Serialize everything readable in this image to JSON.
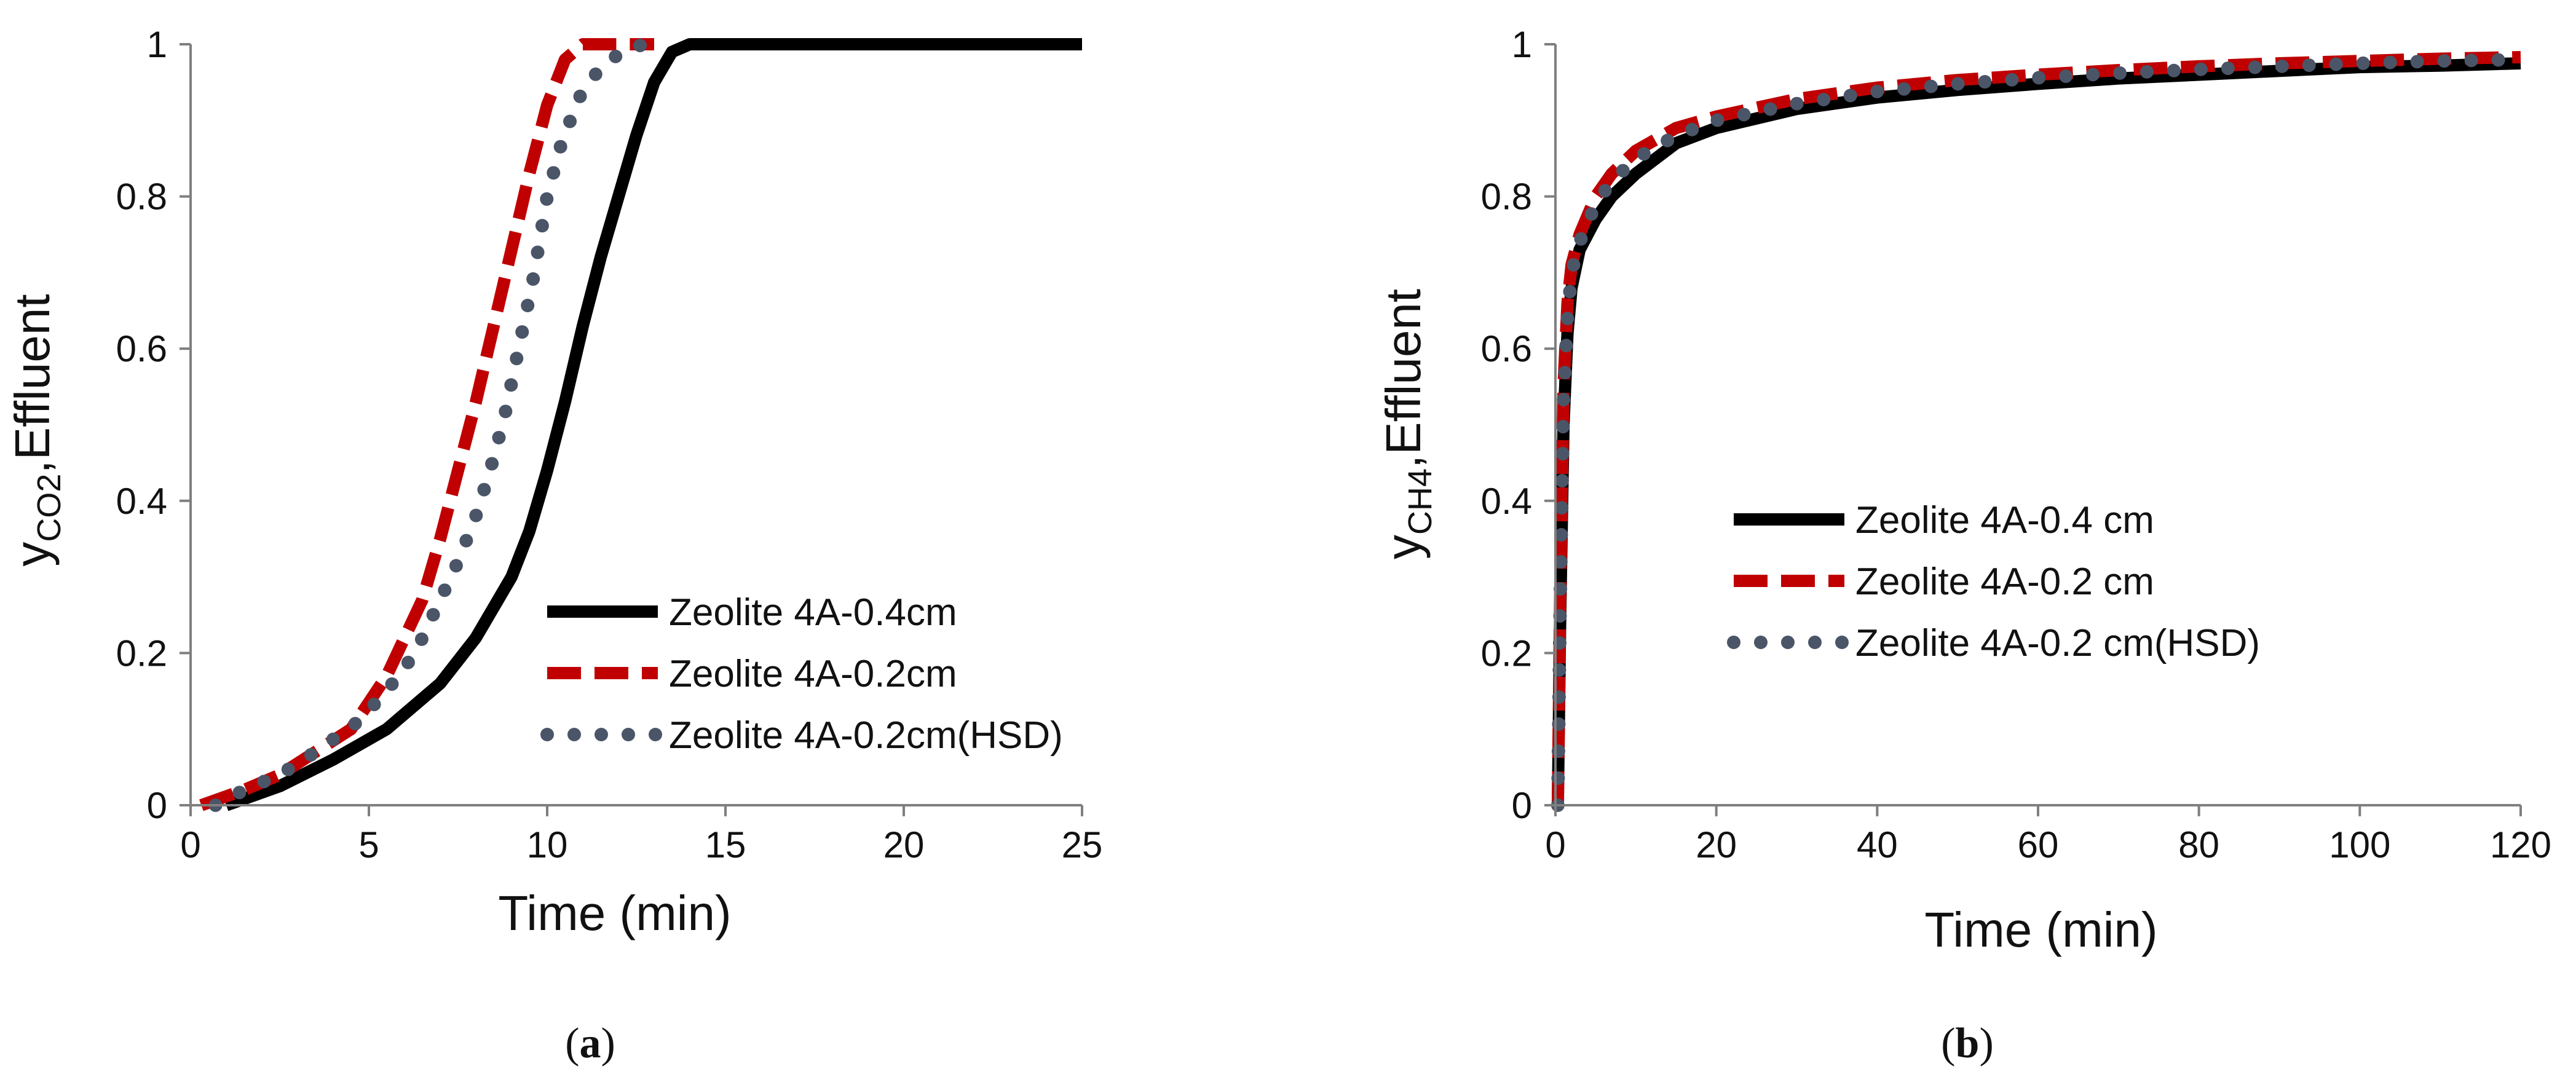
{
  "chart_data": [
    {
      "panel": "a",
      "type": "line",
      "caption": "a",
      "xlabel": "Time (min)",
      "ylabel_main": "y",
      "ylabel_sub": "CO2",
      "ylabel_suffix": ",Effluent",
      "xlim": [
        0,
        25
      ],
      "ylim": [
        0,
        1
      ],
      "xticks": [
        0,
        5,
        10,
        15,
        20,
        25
      ],
      "yticks": [
        0,
        0.2,
        0.4,
        0.6,
        0.8,
        1
      ],
      "ytick_labels": [
        "0",
        "0.2",
        "0.4",
        "0.6",
        "0.8",
        "1"
      ],
      "grid": false,
      "legend_position": "bottom-right",
      "series": [
        {
          "name": "Zeolite 4A-0.4cm",
          "style": "solid",
          "color": "#000000",
          "x": [
            1.0,
            2.5,
            4.0,
            5.5,
            7.0,
            8.0,
            9.0,
            9.5,
            10.0,
            10.5,
            11.0,
            11.5,
            12.0,
            12.5,
            13.0,
            13.5,
            14.0,
            15.0,
            20.0,
            25.0
          ],
          "y": [
            0.0,
            0.025,
            0.06,
            0.1,
            0.16,
            0.22,
            0.3,
            0.36,
            0.44,
            0.53,
            0.63,
            0.72,
            0.8,
            0.88,
            0.95,
            0.99,
            1.0,
            1.0,
            1.0,
            1.0
          ]
        },
        {
          "name": "Zeolite 4A-0.2cm",
          "style": "dashed",
          "color": "#c00000",
          "x": [
            0.3,
            1.5,
            2.5,
            3.5,
            4.5,
            5.5,
            6.5,
            7.0,
            7.5,
            8.0,
            8.5,
            9.0,
            9.5,
            10.0,
            10.5,
            11.0,
            12.0,
            13.0
          ],
          "y": [
            0.0,
            0.02,
            0.04,
            0.07,
            0.1,
            0.17,
            0.27,
            0.35,
            0.44,
            0.53,
            0.63,
            0.73,
            0.83,
            0.92,
            0.98,
            1.0,
            1.0,
            1.0
          ]
        },
        {
          "name": "Zeolite 4A-0.2cm(HSD)",
          "style": "dotted",
          "color": "#4a5568",
          "x": [
            0.7,
            1.5,
            2.5,
            3.5,
            4.7,
            5.5,
            6.3,
            6.9,
            7.5,
            8.0,
            8.4,
            8.8,
            9.2,
            9.6,
            10.0,
            10.4,
            10.9,
            11.5,
            12.1,
            12.7
          ],
          "y": [
            0.0,
            0.02,
            0.04,
            0.07,
            0.11,
            0.15,
            0.2,
            0.26,
            0.32,
            0.38,
            0.44,
            0.51,
            0.6,
            0.69,
            0.8,
            0.87,
            0.93,
            0.97,
            0.99,
            1.0
          ]
        }
      ]
    },
    {
      "panel": "b",
      "type": "line",
      "caption": "b",
      "xlabel": "Time (min)",
      "ylabel_main": "y",
      "ylabel_sub": "CH4",
      "ylabel_suffix": ",Effluent",
      "xlim": [
        0,
        120
      ],
      "ylim": [
        0,
        1
      ],
      "xticks": [
        0,
        20,
        40,
        60,
        80,
        100,
        120
      ],
      "yticks": [
        0,
        0.2,
        0.4,
        0.6,
        0.8,
        1
      ],
      "ytick_labels": [
        "0",
        "0.2",
        "0.4",
        "0.6",
        "0.8",
        "1"
      ],
      "grid": false,
      "legend_position": "center-right",
      "series": [
        {
          "name": "Zeolite 4A-0.4 cm",
          "style": "solid",
          "color": "#000000",
          "x": [
            0.3,
            0.6,
            1.0,
            1.5,
            2.0,
            3.0,
            5.0,
            7.0,
            10.0,
            15.0,
            20.0,
            30.0,
            40.0,
            50.0,
            60.0,
            70.0,
            80.0,
            90.0,
            100.0,
            110.0,
            120.0
          ],
          "y": [
            0.0,
            0.25,
            0.5,
            0.62,
            0.68,
            0.73,
            0.77,
            0.8,
            0.83,
            0.87,
            0.89,
            0.915,
            0.93,
            0.94,
            0.948,
            0.955,
            0.96,
            0.965,
            0.97,
            0.972,
            0.975
          ]
        },
        {
          "name": "Zeolite 4A-0.2 cm",
          "style": "dashed",
          "color": "#c00000",
          "x": [
            0.3,
            0.6,
            1.0,
            1.5,
            2.0,
            3.0,
            5.0,
            7.0,
            10.0,
            15.0,
            20.0,
            30.0,
            40.0,
            50.0,
            60.0,
            70.0,
            80.0,
            90.0,
            100.0,
            110.0,
            120.0
          ],
          "y": [
            0.0,
            0.28,
            0.55,
            0.66,
            0.71,
            0.75,
            0.8,
            0.83,
            0.86,
            0.89,
            0.905,
            0.928,
            0.943,
            0.953,
            0.96,
            0.966,
            0.971,
            0.975,
            0.978,
            0.981,
            0.983
          ]
        },
        {
          "name": "Zeolite 4A-0.2 cm(HSD)",
          "style": "dotted",
          "color": "#4a5568",
          "x": [
            0.3,
            0.6,
            1.0,
            1.5,
            2.0,
            3.0,
            5.0,
            7.0,
            10.0,
            15.0,
            20.0,
            30.0,
            40.0,
            50.0,
            60.0,
            70.0,
            80.0,
            90.0,
            100.0,
            110.0,
            120.0
          ],
          "y": [
            0.0,
            0.27,
            0.53,
            0.64,
            0.7,
            0.74,
            0.79,
            0.82,
            0.85,
            0.88,
            0.9,
            0.922,
            0.938,
            0.948,
            0.956,
            0.962,
            0.967,
            0.971,
            0.975,
            0.978,
            0.98
          ]
        }
      ]
    }
  ]
}
